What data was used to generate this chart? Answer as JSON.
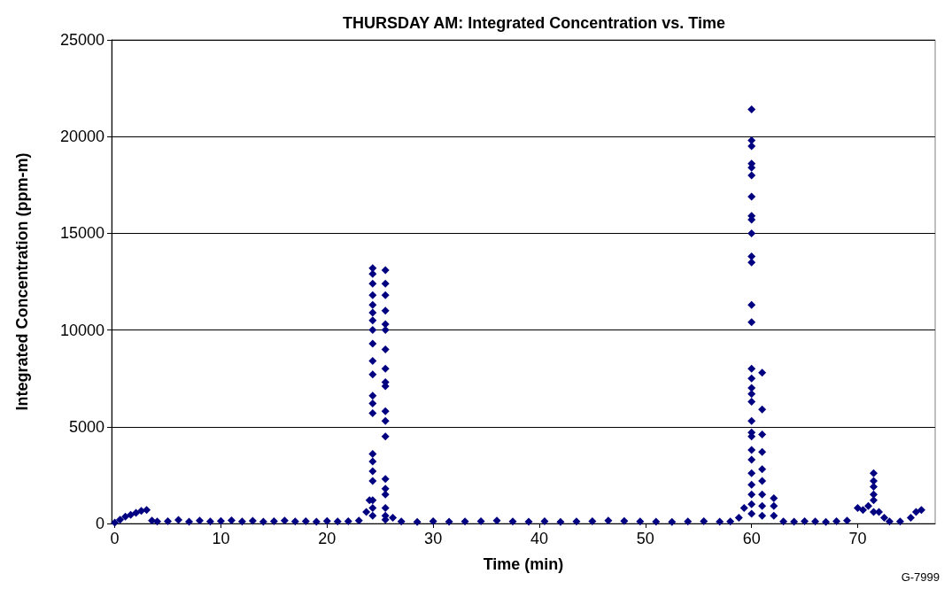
{
  "chart_data": {
    "type": "scatter",
    "title": "THURSDAY AM: Integrated Concentration vs. Time",
    "xlabel": "Time (min)",
    "ylabel": "Integrated Concentration (ppm-m)",
    "annotations": [
      "G-7999"
    ],
    "xlim": [
      -0.3,
      77.3
    ],
    "xticks": [
      0,
      10,
      20,
      30,
      40,
      50,
      60,
      70
    ],
    "ylim": [
      0,
      25000
    ],
    "yticks": [
      0,
      5000,
      10000,
      15000,
      20000,
      25000
    ],
    "grid": "y",
    "marker": "diamond",
    "series": [
      {
        "color": "#000080",
        "x": [
          0,
          0.5,
          1,
          1.5,
          2,
          2.5,
          3,
          3.5,
          4,
          5,
          6,
          7,
          8,
          9,
          10,
          11,
          12,
          13,
          14,
          15,
          16,
          17,
          18,
          19,
          20,
          21,
          22,
          23,
          23.7,
          24,
          24.3,
          24.3,
          24.3,
          24.3,
          24.3,
          24.3,
          24.3,
          24.3,
          24.3,
          24.3,
          24.3,
          24.3,
          24.3,
          24.3,
          24.3,
          24.3,
          24.3,
          24.3,
          24.3,
          24.3,
          24.3,
          25.5,
          25.5,
          25.5,
          25.5,
          25.5,
          25.5,
          25.5,
          25.5,
          25.5,
          25.5,
          25.5,
          25.5,
          25.5,
          25.5,
          25.5,
          25.5,
          25.5,
          25.5,
          25.5,
          26.2,
          27,
          28.5,
          30,
          31.5,
          33,
          34.5,
          36,
          37.5,
          39,
          40.5,
          42,
          43.5,
          45,
          46.5,
          48,
          49.5,
          51,
          52.5,
          54,
          55.5,
          57,
          58,
          58.8,
          59.3,
          60,
          60,
          60,
          60,
          60,
          60,
          60,
          60,
          60,
          60,
          60,
          60,
          60,
          60,
          60,
          60,
          60,
          60,
          60,
          60,
          60,
          60,
          60,
          60,
          60,
          60,
          60,
          60,
          60,
          61,
          61,
          61,
          61,
          61,
          61,
          61,
          61,
          61,
          62.1,
          62.1,
          62.1,
          63,
          64,
          65,
          66,
          67,
          68,
          69,
          70,
          70.5,
          71,
          71.5,
          71.5,
          71.5,
          71.5,
          71.5,
          71.5,
          72,
          72.5,
          73,
          74,
          75,
          75.5,
          76
        ],
        "values": [
          50,
          200,
          350,
          450,
          550,
          650,
          700,
          150,
          100,
          120,
          180,
          90,
          150,
          100,
          130,
          160,
          100,
          140,
          90,
          120,
          150,
          100,
          110,
          90,
          130,
          100,
          120,
          150,
          600,
          1200,
          13200,
          12900,
          12400,
          11800,
          11300,
          10900,
          10500,
          10000,
          9300,
          8400,
          7700,
          6600,
          6200,
          5700,
          3600,
          3200,
          2700,
          2200,
          1200,
          800,
          400,
          13100,
          12400,
          11800,
          11000,
          10300,
          10000,
          9000,
          8000,
          7300,
          7100,
          5800,
          5300,
          4500,
          2300,
          1800,
          1500,
          800,
          400,
          200,
          300,
          100,
          80,
          120,
          90,
          100,
          110,
          150,
          100,
          90,
          120,
          80,
          100,
          110,
          150,
          130,
          100,
          90,
          80,
          100,
          120,
          90,
          100,
          300,
          800,
          21400,
          19800,
          19500,
          18600,
          18400,
          18000,
          16900,
          15900,
          15700,
          15000,
          13800,
          13500,
          11300,
          10400,
          8000,
          7500,
          7000,
          6700,
          6300,
          5300,
          4700,
          4500,
          3800,
          3300,
          2600,
          2000,
          1500,
          1000,
          500,
          7800,
          5900,
          4600,
          3700,
          2800,
          2200,
          1500,
          900,
          400,
          1300,
          900,
          400,
          100,
          90,
          120,
          100,
          80,
          110,
          150,
          800,
          700,
          900,
          2600,
          2200,
          1900,
          1500,
          1200,
          600,
          600,
          300,
          100,
          100,
          300,
          600,
          700
        ]
      }
    ]
  }
}
